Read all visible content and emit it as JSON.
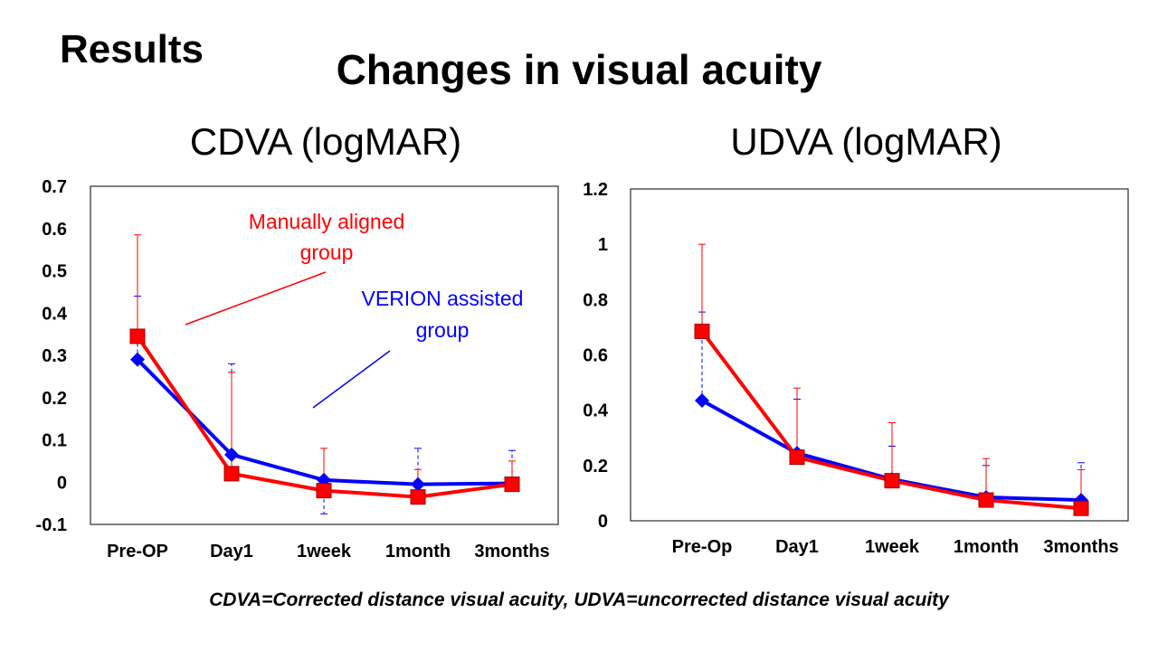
{
  "slide": {
    "section": "Results",
    "title": "Changes in visual acuity",
    "footnote": "CDVA=Corrected distance visual acuity,  UDVA=uncorrected distance visual acuity"
  },
  "colors": {
    "manual": "#ff0000",
    "verion": "#0000ff",
    "axis": "#000000"
  },
  "chart_data": [
    {
      "type": "line",
      "id": "cdva",
      "title": "CDVA (logMAR)",
      "xlabel": "",
      "ylabel": "",
      "categories": [
        "Pre-OP",
        "Day1",
        "1week",
        "1month",
        "3months"
      ],
      "ylim": [
        -0.1,
        0.7
      ],
      "yticks": [
        -0.1,
        0,
        0.1,
        0.2,
        0.3,
        0.4,
        0.5,
        0.6,
        0.7
      ],
      "ytick_labels": [
        "-0.1",
        "0",
        "0.1",
        "0.2",
        "0.3",
        "0.4",
        "0.5",
        "0.6",
        "0.7"
      ],
      "grid": false,
      "series": [
        {
          "name": "VERION assisted group",
          "label_lines": [
            "VERION assisted",
            "group"
          ],
          "color": "#0000ff",
          "marker": "diamond",
          "values": [
            0.29,
            0.065,
            0.005,
            -0.005,
            -0.003
          ],
          "error_sign": [
            1,
            1,
            -1,
            1,
            1
          ],
          "error_end": [
            0.44,
            0.28,
            -0.075,
            0.08,
            0.075
          ]
        },
        {
          "name": "Manually aligned group",
          "label_lines": [
            "Manually aligned",
            "group"
          ],
          "color": "#ff0000",
          "marker": "square",
          "values": [
            0.345,
            0.02,
            -0.02,
            -0.035,
            -0.005
          ],
          "error_sign": [
            1,
            1,
            1,
            1,
            1
          ],
          "error_end": [
            0.585,
            0.26,
            0.08,
            0.03,
            0.05
          ]
        }
      ]
    },
    {
      "type": "line",
      "id": "udva",
      "title": "UDVA (logMAR)",
      "xlabel": "",
      "ylabel": "",
      "categories": [
        "Pre-Op",
        "Day1",
        "1week",
        "1month",
        "3months"
      ],
      "ylim": [
        0,
        1.2
      ],
      "yticks": [
        0,
        0.2,
        0.4,
        0.6,
        0.8,
        1,
        1.2
      ],
      "ytick_labels": [
        "0",
        "0.2",
        "0.4",
        "0.6",
        "0.8",
        "1",
        "1.2"
      ],
      "grid": false,
      "series": [
        {
          "name": "VERION assisted group",
          "color": "#0000ff",
          "marker": "diamond",
          "values": [
            0.435,
            0.245,
            0.15,
            0.085,
            0.075
          ],
          "error_sign": [
            1,
            1,
            1,
            1,
            1
          ],
          "error_end": [
            0.755,
            0.44,
            0.27,
            0.2,
            0.21
          ]
        },
        {
          "name": "Manually aligned group",
          "color": "#ff0000",
          "marker": "square",
          "values": [
            0.685,
            0.23,
            0.145,
            0.075,
            0.045
          ],
          "error_sign": [
            1,
            1,
            1,
            1,
            1
          ],
          "error_end": [
            1.0,
            0.48,
            0.355,
            0.225,
            0.185
          ]
        }
      ]
    }
  ]
}
